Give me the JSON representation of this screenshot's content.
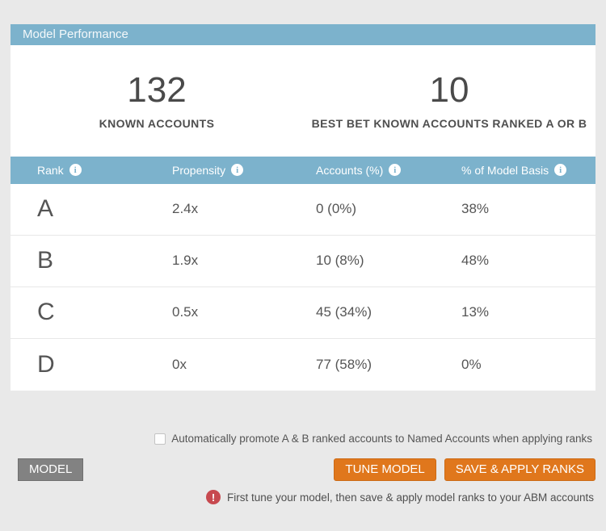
{
  "panel": {
    "header": {
      "title": "Model Performance"
    },
    "stats": [
      {
        "value": "132",
        "label": "KNOWN ACCOUNTS"
      },
      {
        "value": "10",
        "label": "BEST BET KNOWN ACCOUNTS RANKED A OR B"
      }
    ],
    "table": {
      "columns": [
        {
          "label": "Rank"
        },
        {
          "label": "Propensity"
        },
        {
          "label": "Accounts (%)"
        },
        {
          "label": "% of Model Basis"
        }
      ],
      "rows": [
        {
          "rank": "A",
          "propensity": "2.4x",
          "accounts": "0 (0%)",
          "model_basis": "38%"
        },
        {
          "rank": "B",
          "propensity": "1.9x",
          "accounts": "10 (8%)",
          "model_basis": "48%"
        },
        {
          "rank": "C",
          "propensity": "0.5x",
          "accounts": "45 (34%)",
          "model_basis": "13%"
        },
        {
          "rank": "D",
          "propensity": "0x",
          "accounts": "77 (58%)",
          "model_basis": "0%"
        }
      ]
    }
  },
  "footer": {
    "checkbox": {
      "checked": false,
      "label": "Automatically promote A & B ranked accounts to Named Accounts when applying ranks"
    },
    "model_tab_label": "MODEL",
    "tune_model_label": "TUNE MODEL",
    "save_apply_label": "SAVE & APPLY RANKS",
    "warning_text": "First tune your model, then save & apply model ranks to your ABM accounts"
  },
  "icons": {
    "info_glyph": "i",
    "warning_glyph": "!"
  },
  "colors": {
    "accent_blue": "#7cb2cc",
    "action_orange": "#e0771c",
    "tab_gray": "#828282",
    "warning_red": "#c7494f",
    "page_background": "#e9e9e9"
  }
}
